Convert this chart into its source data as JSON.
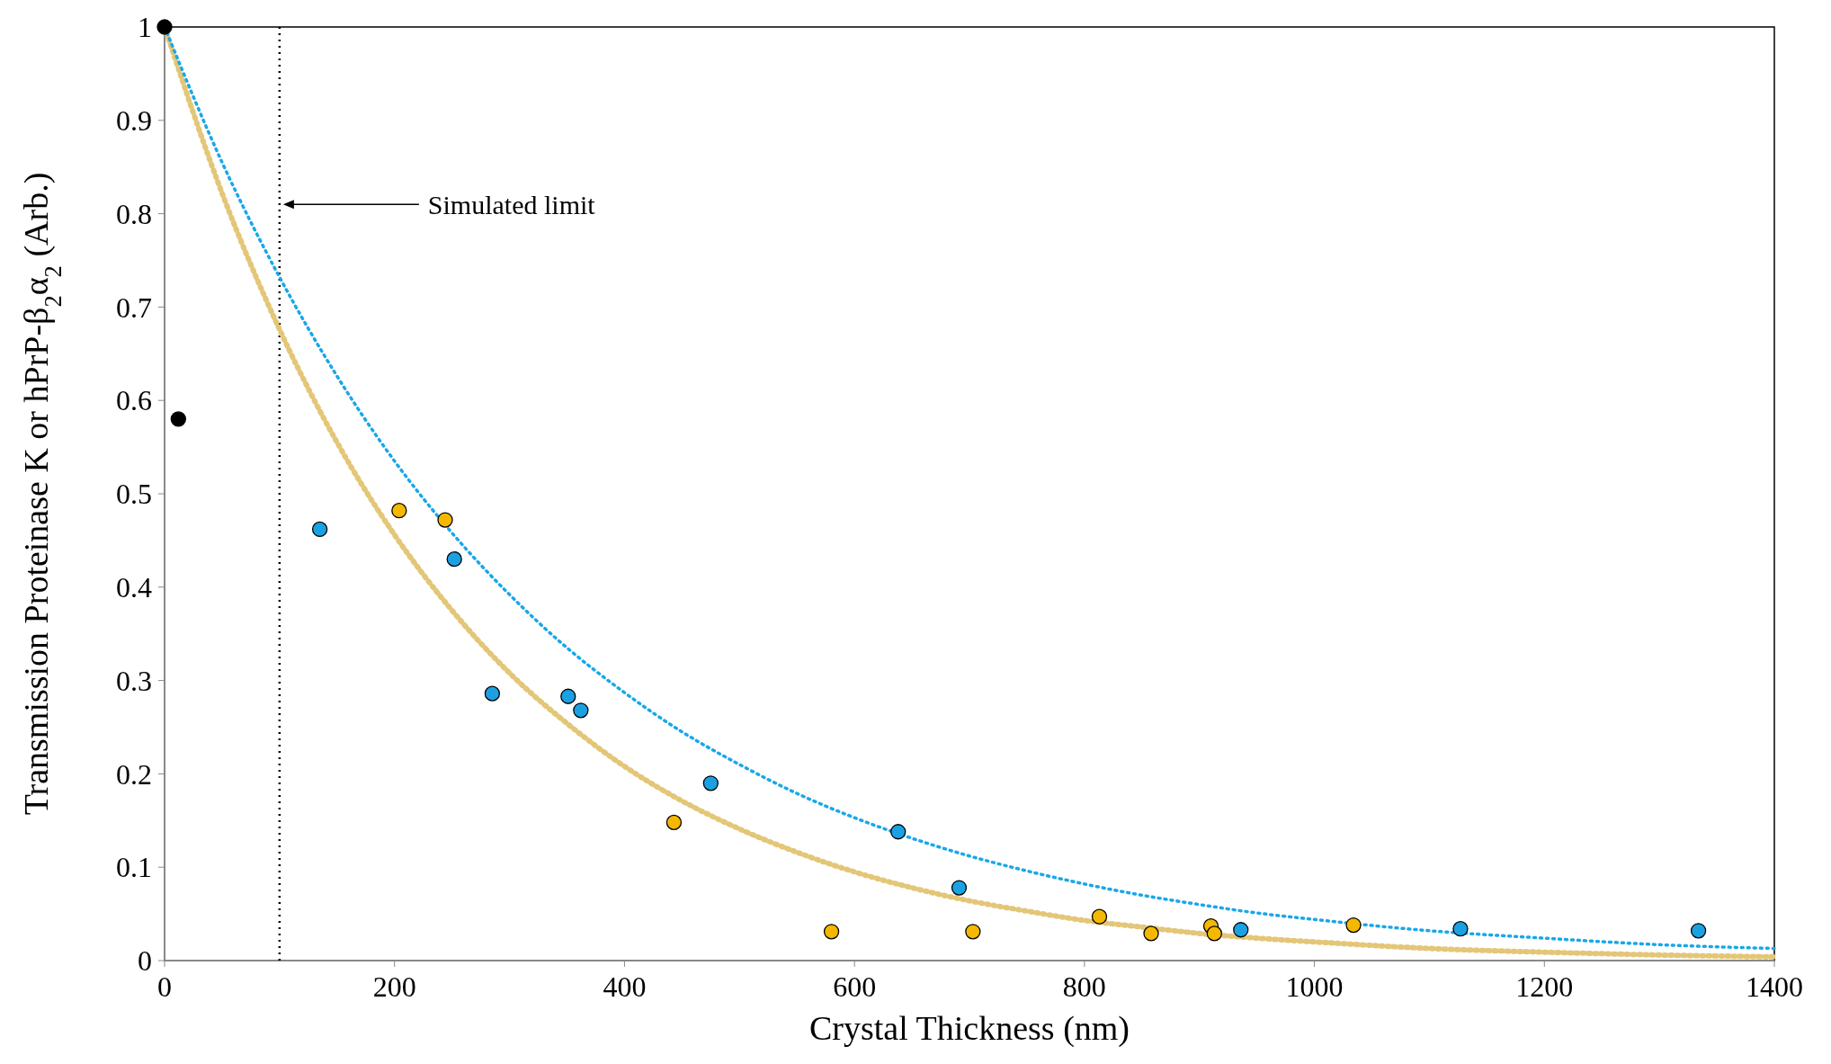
{
  "chart_data": {
    "type": "scatter",
    "xlabel": "Crystal Thickness (nm)",
    "ylabel": "Transmission Proteinase K or hPrP-β$_{2}$α$_{2}$ (Arb.)",
    "xlim": [
      0,
      1400
    ],
    "xticks": [
      0,
      200,
      400,
      600,
      800,
      1000,
      1200,
      1400
    ],
    "ylim": [
      0,
      1
    ],
    "yticks": [
      0,
      0.1,
      0.2,
      0.3,
      0.4,
      0.5,
      0.6,
      0.7,
      0.8,
      0.9,
      1
    ],
    "grid": false,
    "ref_lines": [
      {
        "axis": "x",
        "value": 100,
        "color": "#000000",
        "line_style": "dotted"
      }
    ],
    "annotations": [
      "Simulated limit"
    ],
    "series": [
      {
        "type": "line",
        "color": "#e3c677",
        "marker": "none",
        "line_style": "dotted",
        "x": [
          0,
          50,
          100,
          150,
          200,
          250,
          300,
          350,
          400,
          450,
          500,
          550,
          600,
          650,
          700,
          750,
          800,
          850,
          900,
          950,
          1000,
          1100,
          1200,
          1300,
          1400
        ],
        "values": [
          1,
          0.822,
          0.676,
          0.555,
          0.456,
          0.375,
          0.308,
          0.254,
          0.208,
          0.171,
          0.141,
          0.116,
          0.095,
          0.078,
          0.064,
          0.053,
          0.043,
          0.036,
          0.029,
          0.024,
          0.02,
          0.013,
          0.009,
          0.006,
          0.004
        ]
      },
      {
        "type": "line",
        "color": "#1aa7e8",
        "marker": "none",
        "line_style": "dotted",
        "x": [
          0,
          50,
          100,
          150,
          200,
          250,
          300,
          350,
          400,
          450,
          500,
          550,
          600,
          650,
          700,
          750,
          800,
          850,
          900,
          950,
          1000,
          1100,
          1200,
          1300,
          1400
        ],
        "values": [
          1,
          0.855,
          0.732,
          0.626,
          0.535,
          0.458,
          0.392,
          0.335,
          0.287,
          0.245,
          0.21,
          0.179,
          0.153,
          0.131,
          0.112,
          0.096,
          0.082,
          0.07,
          0.06,
          0.051,
          0.044,
          0.032,
          0.024,
          0.017,
          0.013
        ]
      },
      {
        "color": "#000000",
        "marker": "circle",
        "x": [
          0,
          12
        ],
        "values": [
          1,
          0.58
        ]
      },
      {
        "color": "#1ba1e2",
        "marker": "circle",
        "x": [
          135,
          252,
          285,
          351,
          362,
          475,
          638,
          691,
          936,
          1127,
          1334
        ],
        "values": [
          0.462,
          0.43,
          0.286,
          0.283,
          0.268,
          0.19,
          0.138,
          0.078,
          0.033,
          0.034,
          0.032
        ]
      },
      {
        "color": "#f5b800",
        "marker": "circle",
        "x": [
          204,
          244,
          443,
          580,
          703,
          813,
          858,
          910,
          913,
          1034
        ],
        "values": [
          0.482,
          0.472,
          0.148,
          0.031,
          0.031,
          0.047,
          0.029,
          0.037,
          0.029,
          0.038
        ]
      }
    ]
  }
}
